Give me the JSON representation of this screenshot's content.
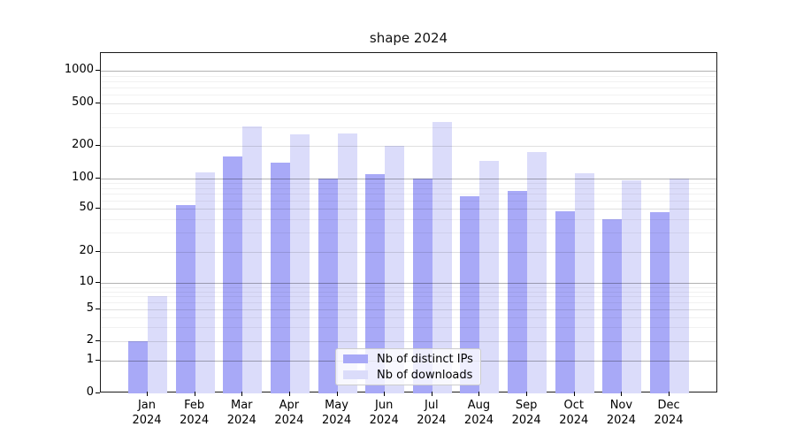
{
  "chart_data": {
    "type": "bar",
    "title": "shape 2024",
    "categories": [
      "Jan 2024",
      "Feb 2024",
      "Mar 2024",
      "Apr 2024",
      "May 2024",
      "Jun 2024",
      "Jul 2024",
      "Aug 2024",
      "Sep 2024",
      "Oct 2024",
      "Nov 2024",
      "Dec 2024"
    ],
    "series": [
      {
        "name": "Nb of distinct IPs",
        "color": "#a8a9f7",
        "values": [
          2,
          54,
          160,
          140,
          100,
          108,
          100,
          66,
          74,
          47,
          40,
          46
        ]
      },
      {
        "name": "Nb of downloads",
        "color": "#dbdcfa",
        "values": [
          7,
          114,
          305,
          255,
          260,
          200,
          330,
          145,
          175,
          110,
          95,
          100
        ]
      }
    ],
    "yscale": "symlog",
    "ylim": [
      0,
      1000
    ],
    "yticks": [
      0,
      1,
      2,
      5,
      10,
      20,
      50,
      100,
      200,
      500,
      1000
    ],
    "grid": true,
    "legend_position": "lower center"
  }
}
